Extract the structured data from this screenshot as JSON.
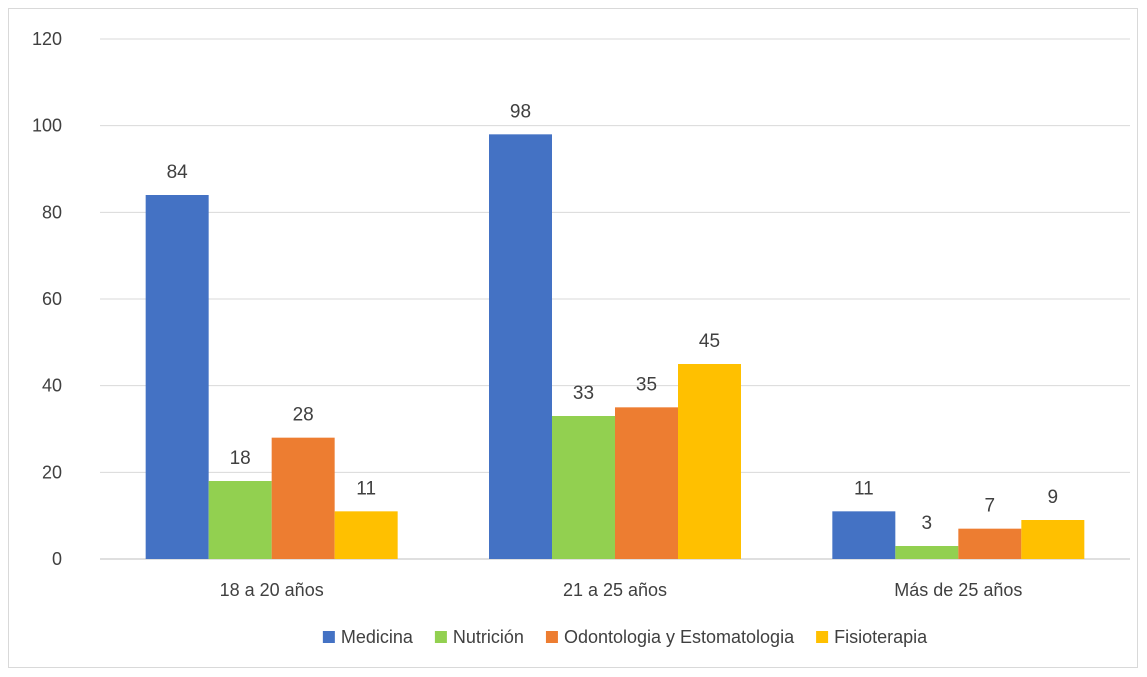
{
  "chart_data": {
    "type": "bar",
    "title": "",
    "xlabel": "",
    "ylabel": "",
    "ylim": [
      0,
      120
    ],
    "yticks": [
      0,
      20,
      40,
      60,
      80,
      100,
      120
    ],
    "grid": true,
    "legend_position": "bottom",
    "categories": [
      "18 a 20 años",
      "21 a 25 años",
      "Más de 25 años"
    ],
    "series": [
      {
        "name": "Medicina",
        "color": "#4472c4",
        "values": [
          84,
          98,
          11
        ]
      },
      {
        "name": "Nutrición",
        "color": "#92d050",
        "values": [
          18,
          33,
          3
        ]
      },
      {
        "name": "Odontologia y Estomatologia",
        "color": "#ed7d31",
        "values": [
          28,
          35,
          7
        ]
      },
      {
        "name": "Fisioterapia",
        "color": "#ffc000",
        "values": [
          11,
          45,
          9
        ]
      }
    ]
  }
}
